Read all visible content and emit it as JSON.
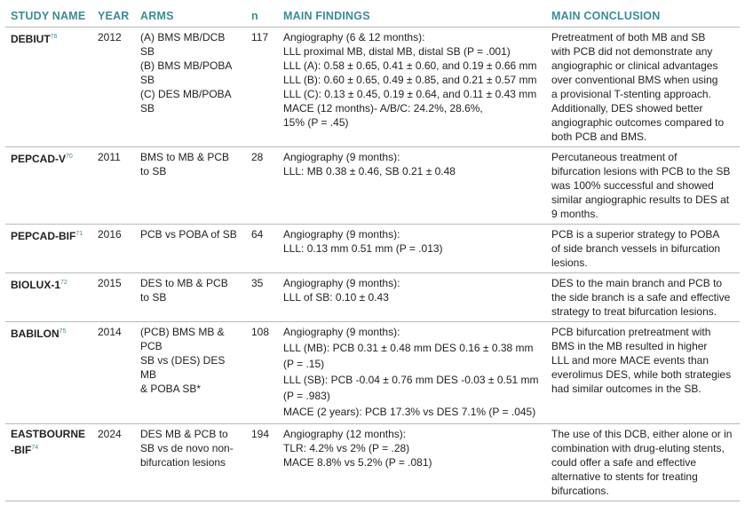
{
  "table": {
    "header": [
      "STUDY NAME",
      "YEAR",
      "ARMS",
      "n",
      "MAIN FINDINGS",
      "MAIN CONCLUSION"
    ],
    "rows": [
      {
        "name": "DEBIUT",
        "ref": "76",
        "year": "2012",
        "arms": [
          "(A) BMS MB/DCB SB",
          "(B) BMS MB/POBA SB",
          "(C) DES MB/POBA SB"
        ],
        "n": "117",
        "findings": [
          "Angiography (6 & 12 months):",
          "LLL proximal MB, distal MB, distal SB (P = .001)",
          "LLL (A): 0.58 ± 0.65, 0.41 ± 0.60, and 0.19 ± 0.66 mm",
          "LLL (B): 0.60 ± 0.65, 0.49 ± 0.85, and 0.21 ± 0.57 mm",
          "LLL (C): 0.13 ± 0.45, 0.19 ± 0.64, and 0.11 ± 0.43 mm",
          "MACE (12 months)- A/B/C: 24.2%, 28.6%,",
          "15% (P = .45)"
        ],
        "conclusion": [
          "Pretreatment of both MB and SB",
          "with PCB did not demonstrate any",
          "angiographic or clinical advantages",
          "over conventional BMS when using",
          "a provisional T-stenting approach.",
          "Additionally, DES showed better",
          "angiographic outcomes compared to",
          "both PCB and BMS."
        ]
      },
      {
        "name": "PEPCAD-V",
        "ref": "70",
        "year": "2011",
        "arms": [
          "BMS to MB & PCB",
          "to SB"
        ],
        "n": "28",
        "findings": [
          "Angiography (9 months):",
          "LLL: MB 0.38 ± 0.46, SB 0.21 ± 0.48"
        ],
        "conclusion": [
          "Percutaneous treatment of",
          "bifurcation lesions with PCB to the SB",
          "was 100% successful and showed",
          "similar angiographic results to DES at",
          "9 months."
        ]
      },
      {
        "name": "PEPCAD-BIF",
        "ref": "71",
        "year": "2016",
        "arms": [
          "PCB vs POBA of SB"
        ],
        "n": "64",
        "findings": [
          "Angiography (9 months):",
          "LLL: 0.13 mm 0.51 mm (P = .013)"
        ],
        "conclusion": [
          "PCB is a superior strategy to POBA",
          "of side branch vessels in bifurcation",
          "lesions."
        ]
      },
      {
        "name": "BIOLUX-1",
        "ref": "72",
        "year": "2015",
        "arms": [
          "DES to MB & PCB",
          "to SB"
        ],
        "n": "35",
        "findings": [
          "Angiography (9 months):",
          "LLL of SB: 0.10 ± 0.43"
        ],
        "conclusion": [
          "DES to the main branch and PCB to",
          "the side branch is a safe and effective",
          "strategy to treat bifurcation lesions."
        ]
      },
      {
        "name": "BABILON",
        "ref": "75",
        "year": "2014",
        "arms": [
          "(PCB) BMS MB & PCB",
          "SB vs (DES) DES MB",
          "& POBA SB*"
        ],
        "n": "108",
        "findings": [
          "Angiography (9 months):",
          "LLL (MB): PCB 0.31 ± 0.48 mm DES 0.16 ± 0.38 mm",
          "(P = .15)",
          "LLL (SB): PCB -0.04 ± 0.76 mm DES -0.03 ± 0.51 mm",
          "(P = .983)",
          "MACE (2 years): PCB 17.3% vs DES 7.1% (P = .045)"
        ],
        "conclusion": [
          "PCB bifurcation pretreatment with",
          "BMS in the MB resulted in higher",
          "LLL and more MACE events than",
          "everolimus DES, while both strategies",
          "had similar outcomes in the SB."
        ]
      },
      {
        "name": "EASTBOURNE-BIF",
        "ref": "74",
        "year": "2024",
        "arms": [
          "DES MB & PCB to",
          "SB vs de novo non-",
          "bifurcation lesions"
        ],
        "n": "194",
        "findings": [
          "Angiography (12 months):",
          "TLR: 4.2% vs 2% (P = .28)",
          "MACE 8.8% vs 5.2% (P = .081)"
        ],
        "conclusion": [
          "The use of this DCB, either alone or in",
          "combination with drug-eluting stents,",
          "could offer a safe and effective",
          "alternative to stents for treating",
          "bifurcations."
        ]
      }
    ]
  }
}
